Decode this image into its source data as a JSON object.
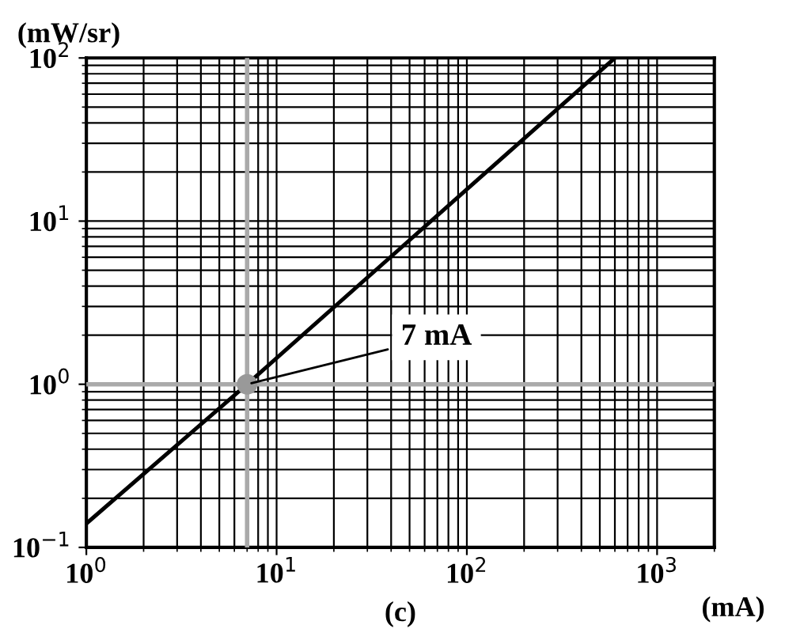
{
  "chart_data": {
    "type": "line",
    "xlabel": "(mA)",
    "ylabel": "(mW/sr)",
    "title": "(c)",
    "x": [
      1,
      7,
      600
    ],
    "series": [
      {
        "color": "#000000",
        "values": [
          0.14,
          1,
          100
        ]
      },
      {
        "type": "scatter",
        "color": "#999999",
        "x": [
          7
        ],
        "values": [
          1
        ],
        "marker": "circle"
      }
    ],
    "log": "xy",
    "xlim": [
      1,
      2000
    ],
    "ylim": [
      0.1,
      100
    ],
    "xticks": [
      {
        "value": 1,
        "label": "10$^{0}$"
      },
      {
        "value": 10,
        "label": "10$^{1}$"
      },
      {
        "value": 100,
        "label": "10$^{2}$"
      },
      {
        "value": 1000,
        "label": "10$^{3}$"
      }
    ],
    "yticks": [
      {
        "value": 0.1,
        "label": "10$^{−1}$"
      },
      {
        "value": 1,
        "label": "10$^{0}$"
      },
      {
        "value": 10,
        "label": "10$^{1}$"
      },
      {
        "value": 100,
        "label": "10$^{2}$"
      }
    ],
    "ref_lines": [
      {
        "axis": "x",
        "value": 7,
        "color": "#aaaaaa"
      },
      {
        "axis": "y",
        "value": 1,
        "color": "#aaaaaa"
      }
    ],
    "annotations": [
      {
        "text": "7 mA",
        "x": 7,
        "y": 1
      }
    ],
    "grid": true,
    "marker": "none",
    "line_style": "solid"
  }
}
